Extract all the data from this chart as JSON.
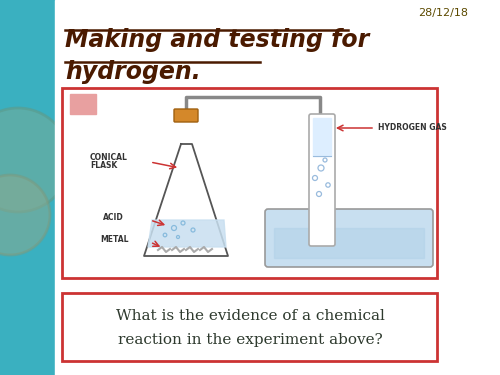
{
  "bg_color": "#3ab0c0",
  "slide_bg": "#ffffff",
  "title_line1": "Making and testing for",
  "title_line2": "hydrogen.",
  "title_color": "#4a1a00",
  "date_text": "28/12/18",
  "date_color": "#5c4a00",
  "diagram_box_color": "#cc3333",
  "question_text_line1": "What is the evidence of a chemical",
  "question_text_line2": "reaction in the experiment above?",
  "question_box_color": "#cc3333",
  "question_text_color": "#2e3a2e",
  "acid_label": "ACID",
  "metal_label": "METAL",
  "flask_label1": "CONICAL",
  "flask_label2": "FLASK",
  "hydrogen_label": "HYDROGEN GAS"
}
